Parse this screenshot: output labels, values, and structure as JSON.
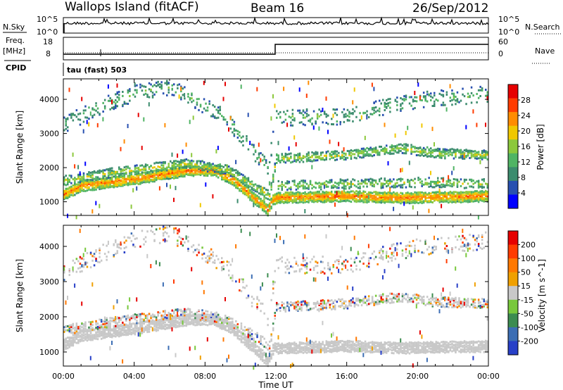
{
  "header": {
    "radar_title": "Wallops Island (fitACF)",
    "beam": "Beam 16",
    "date": "26/Sep/2012"
  },
  "status_panel": {
    "nsky_label": "N.Sky",
    "nsearch_label": "N.Search",
    "freq_label": "Freq.",
    "freq_unit": "[MHz]",
    "nave_label": "Nave",
    "cpid_label": "CPID",
    "cpid_value": "tau (fast) 503",
    "noise_ticks": [
      "10^5",
      "10^0"
    ],
    "freq_ticks": [
      "18",
      "8"
    ],
    "nave_ticks": [
      "60",
      "0"
    ]
  },
  "chart_data": [
    {
      "type": "heatmap",
      "panel": "power",
      "ylabel": "Slant Range [km]",
      "xlabel": "Time UT",
      "x_ticks": [
        "00:00",
        "04:00",
        "08:00",
        "12:00",
        "16:00",
        "20:00",
        "00:00"
      ],
      "x_tick_hours": [
        0,
        4,
        8,
        12,
        16,
        20,
        24
      ],
      "y_ticks": [
        1000,
        2000,
        3000,
        4000
      ],
      "ylim": [
        600,
        4600
      ],
      "xlim_hours": [
        0,
        24
      ],
      "colorbar_label": "Power [dB]",
      "colorbar_ticks": [
        4,
        8,
        12,
        16,
        20,
        24,
        28
      ],
      "colorbar_range": [
        0,
        32
      ],
      "colors": [
        "#0000ff",
        "#2850b0",
        "#3c8c6e",
        "#50b464",
        "#8cc83c",
        "#f0c800",
        "#ff8c00",
        "#ff3c00",
        "#e60000"
      ],
      "bands": [
        {
          "name": "main",
          "points": [
            [
              0,
              1250
            ],
            [
              1,
              1500
            ],
            [
              4,
              1700
            ],
            [
              7,
              1950
            ],
            [
              8.5,
              1950
            ],
            [
              9.5,
              1700
            ],
            [
              11.5,
              800
            ],
            [
              11.8,
              1100
            ],
            [
              12,
              1150
            ],
            [
              16,
              1200
            ],
            [
              19,
              1150
            ],
            [
              24,
              1200
            ]
          ],
          "width": 150,
          "power": 26,
          "density": 0.9
        },
        {
          "name": "upper",
          "points": [
            [
              0,
              1650
            ],
            [
              3,
              1900
            ],
            [
              7,
              2150
            ],
            [
              9.3,
              1950
            ],
            [
              11.6,
              1200
            ],
            [
              12,
              2300
            ],
            [
              16,
              2400
            ],
            [
              19,
              2600
            ],
            [
              21,
              2450
            ],
            [
              24,
              2400
            ]
          ],
          "width": 120,
          "power": 17,
          "density": 0.55
        },
        {
          "name": "high",
          "points": [
            [
              0,
              3300
            ],
            [
              2,
              3800
            ],
            [
              4,
              4200
            ],
            [
              6,
              4400
            ],
            [
              9.2,
              3450
            ],
            [
              11.5,
              2000
            ],
            [
              12,
              3500
            ],
            [
              16,
              3500
            ],
            [
              18,
              3800
            ],
            [
              20,
              4000
            ],
            [
              24,
              4200
            ]
          ],
          "width": 220,
          "power": 12,
          "density": 0.18
        },
        {
          "name": "middle",
          "points": [
            [
              12,
              1500
            ],
            [
              16,
              1550
            ],
            [
              20,
              1600
            ],
            [
              24,
              1550
            ]
          ],
          "width": 120,
          "power": 16,
          "density": 0.4
        }
      ]
    },
    {
      "type": "heatmap",
      "panel": "velocity",
      "ylabel": "Slant Range [km]",
      "xlabel": "Time UT",
      "x_ticks": [
        "00:00",
        "04:00",
        "08:00",
        "12:00",
        "16:00",
        "20:00",
        "00:00"
      ],
      "x_tick_hours": [
        0,
        4,
        8,
        12,
        16,
        20,
        24
      ],
      "y_ticks": [
        1000,
        2000,
        3000,
        4000
      ],
      "ylim": [
        600,
        4600
      ],
      "xlim_hours": [
        0,
        24
      ],
      "colorbar_label": "Velocity [m s^-1]",
      "colorbar_ticks": [
        200,
        100,
        50,
        15,
        -15,
        -50,
        -100,
        -200
      ],
      "colors": [
        "#2840c8",
        "#3c6eb4",
        "#3c8c50",
        "#78c83c",
        "#c8c8c8",
        "#f0a000",
        "#ff7800",
        "#ff3c00",
        "#e60000"
      ],
      "ground_scatter_color": "#c8c8c8",
      "bands": [
        {
          "name": "main",
          "points": [
            [
              0,
              1250
            ],
            [
              1,
              1500
            ],
            [
              4,
              1700
            ],
            [
              7,
              1950
            ],
            [
              8.5,
              1950
            ],
            [
              9.5,
              1700
            ],
            [
              11.5,
              800
            ],
            [
              11.8,
              1100
            ],
            [
              12,
              1150
            ],
            [
              16,
              1200
            ],
            [
              19,
              1150
            ],
            [
              24,
              1200
            ]
          ],
          "width": 150,
          "velocity": 0,
          "density": 0.85
        },
        {
          "name": "upper",
          "points": [
            [
              0,
              1650
            ],
            [
              3,
              1900
            ],
            [
              7,
              2150
            ],
            [
              9.3,
              1950
            ],
            [
              11.6,
              1200
            ],
            [
              12,
              2300
            ],
            [
              16,
              2400
            ],
            [
              19,
              2600
            ],
            [
              21,
              2450
            ],
            [
              24,
              2400
            ]
          ],
          "width": 120,
          "velocity": 30,
          "density": 0.45
        },
        {
          "name": "high",
          "points": [
            [
              0,
              3300
            ],
            [
              2,
              3800
            ],
            [
              4,
              4200
            ],
            [
              6,
              4400
            ],
            [
              9.2,
              3450
            ],
            [
              11.5,
              2000
            ],
            [
              12,
              3500
            ],
            [
              16,
              3500
            ],
            [
              18,
              3800
            ],
            [
              20,
              4000
            ],
            [
              24,
              4200
            ]
          ],
          "width": 220,
          "velocity": -40,
          "density": 0.15
        }
      ]
    }
  ]
}
